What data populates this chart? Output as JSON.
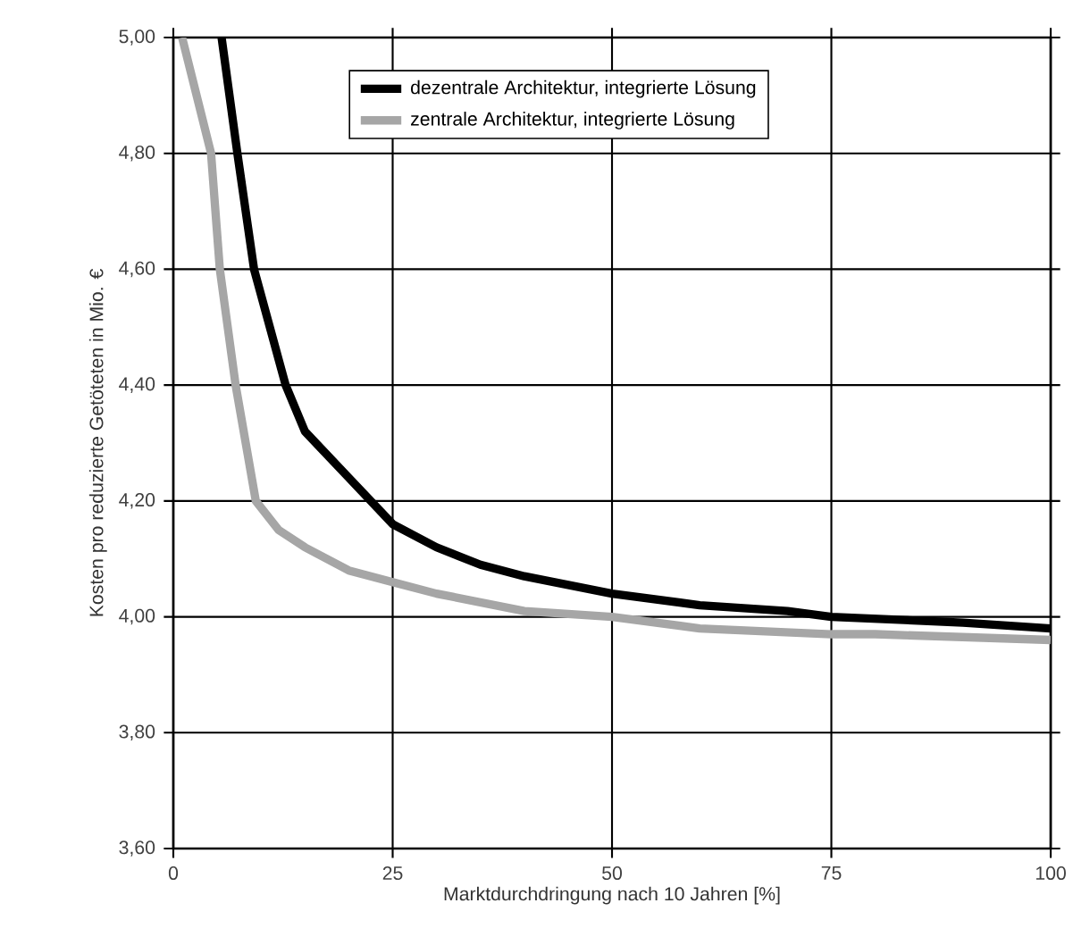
{
  "chart_data": {
    "type": "line",
    "xlabel": "Marktdurchdringung nach 10 Jahren [%]",
    "ylabel": "Kosten pro reduzierte Getöteten in Mio. €",
    "xlim": [
      0,
      100
    ],
    "xticks": [
      0,
      25,
      50,
      75,
      100
    ],
    "ylim": [
      3.6,
      5.0
    ],
    "yticks": [
      {
        "value": 3.6,
        "label": "3,60"
      },
      {
        "value": 3.8,
        "label": "3,80"
      },
      {
        "value": 4.0,
        "label": "4,00"
      },
      {
        "value": 4.2,
        "label": "4,20"
      },
      {
        "value": 4.4,
        "label": "4,40"
      },
      {
        "value": 4.6,
        "label": "4,60"
      },
      {
        "value": 4.8,
        "label": "4,80"
      },
      {
        "value": 5.0,
        "label": "5,00"
      }
    ],
    "grid": true,
    "legend": "top",
    "marker": "none",
    "line_style": "solid",
    "series": [
      {
        "name": "dezentrale Architektur, integrierte Lösung",
        "color": "#000000",
        "x": [
          5.5,
          7.3,
          9.2,
          12.8,
          15,
          20,
          25,
          30,
          35,
          40,
          50,
          60,
          70,
          75,
          90,
          100
        ],
        "values": [
          5.0,
          4.8,
          4.6,
          4.4,
          4.32,
          4.24,
          4.16,
          4.12,
          4.09,
          4.07,
          4.04,
          4.02,
          4.01,
          4.0,
          3.99,
          3.98
        ]
      },
      {
        "name": "zentrale Architektur, integrierte Lösung",
        "color": "#a6a6a6",
        "x": [
          1.0,
          4.3,
          5.3,
          7.1,
          9.4,
          12,
          15,
          20,
          25,
          30,
          40,
          50,
          60,
          75,
          80,
          100
        ],
        "values": [
          5.0,
          4.8,
          4.6,
          4.4,
          4.2,
          4.15,
          4.12,
          4.08,
          4.06,
          4.04,
          4.01,
          4.0,
          3.98,
          3.97,
          3.97,
          3.96
        ]
      }
    ]
  }
}
